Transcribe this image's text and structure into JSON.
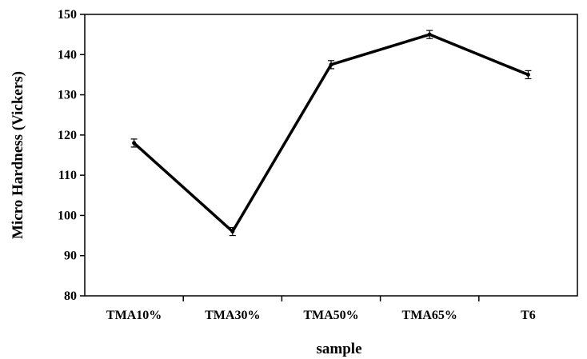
{
  "chart_data": {
    "type": "line",
    "title": "",
    "xlabel": "sample",
    "ylabel": "Micro Hardness (Vickers)",
    "categories": [
      "TMA10%",
      "TMA30%",
      "TMA50%",
      "TMA65%",
      "T6"
    ],
    "series": [
      {
        "values": [
          118,
          96,
          137.5,
          145,
          135
        ],
        "errors": [
          1,
          1,
          1,
          1,
          1
        ]
      }
    ],
    "ylim": [
      80,
      150
    ],
    "yticks": [
      80,
      90,
      100,
      110,
      120,
      130,
      140,
      150
    ],
    "grid": false,
    "legend": "none",
    "line_color": "#000000"
  }
}
